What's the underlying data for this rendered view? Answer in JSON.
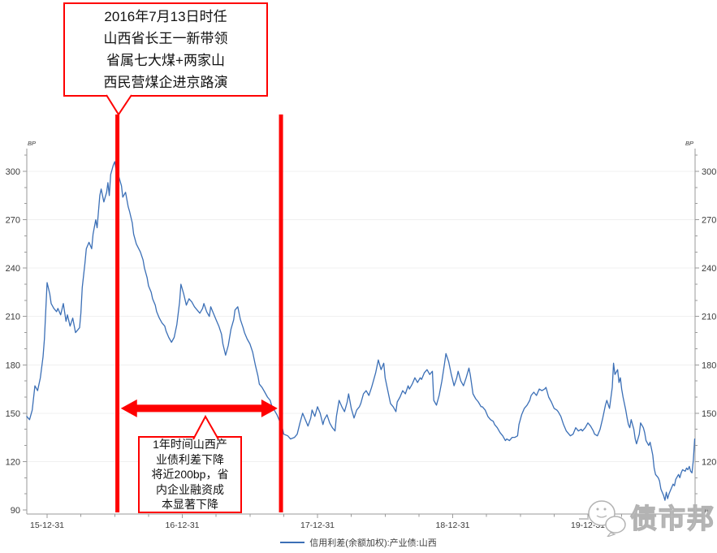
{
  "annotations": {
    "callout_top": {
      "lines": [
        "2016年7月13日时任",
        "山西省长王一新带领",
        "省属七大煤+两家山",
        "西民营煤企进京路演"
      ]
    },
    "callout_bottom": {
      "lines": [
        "1年时间山西产",
        "业债利差下降",
        "将近200bp，省",
        "内企业融资成",
        "本显著下降"
      ]
    }
  },
  "watermark": {
    "text": "债市邦"
  },
  "colors": {
    "line": "#3b6fb6",
    "red": "#fe0000",
    "grid": "#f0f0f0",
    "axis": "#9a9a9a",
    "tick_label": "#3a3a3a",
    "legend_text": "#404040",
    "watermark": "#b3b3b3"
  },
  "chart_data": {
    "type": "line",
    "title": "",
    "y_unit": "BP",
    "y_ticks": [
      90,
      120,
      150,
      180,
      210,
      240,
      270,
      300
    ],
    "y_minor_step": 10,
    "ylim": [
      87,
      313
    ],
    "x_tick_labels": [
      "15-12-31",
      "16-12-31",
      "17-12-31",
      "18-12-31",
      "19-12-31"
    ],
    "x_unit": "years since 2015-12-31",
    "x_minor_ticks_per_year": 4,
    "xlim": [
      -0.15,
      4.79
    ],
    "grid": "horizontal-light",
    "legend_position": "bottom-center",
    "legend": [
      {
        "name": "信用利差(余额加权):产业债:山西",
        "color": "#3b6fb6"
      }
    ],
    "event_lines_x": [
      0.52,
      1.73
    ],
    "arrow": {
      "from_x": 0.545,
      "to_x": 1.705,
      "y": 153
    },
    "series": [
      {
        "name": "信用利差(余额加权):产业债:山西",
        "points": [
          [
            -0.15,
            148
          ],
          [
            -0.13,
            146
          ],
          [
            -0.11,
            152
          ],
          [
            -0.09,
            167
          ],
          [
            -0.07,
            164
          ],
          [
            -0.05,
            172
          ],
          [
            -0.03,
            185
          ],
          [
            -0.02,
            196
          ],
          [
            0,
            231
          ],
          [
            0.02,
            224
          ],
          [
            0.03,
            218
          ],
          [
            0.05,
            215
          ],
          [
            0.07,
            213
          ],
          [
            0.08,
            215
          ],
          [
            0.1,
            211
          ],
          [
            0.12,
            218
          ],
          [
            0.14,
            207
          ],
          [
            0.15,
            211
          ],
          [
            0.17,
            204
          ],
          [
            0.19,
            209
          ],
          [
            0.21,
            200
          ],
          [
            0.24,
            203
          ],
          [
            0.25,
            212
          ],
          [
            0.26,
            228
          ],
          [
            0.28,
            243
          ],
          [
            0.29,
            252
          ],
          [
            0.31,
            256
          ],
          [
            0.33,
            252
          ],
          [
            0.34,
            261
          ],
          [
            0.36,
            270
          ],
          [
            0.37,
            265
          ],
          [
            0.39,
            285
          ],
          [
            0.4,
            289
          ],
          [
            0.42,
            281
          ],
          [
            0.44,
            287
          ],
          [
            0.45,
            293
          ],
          [
            0.46,
            285
          ],
          [
            0.47,
            298
          ],
          [
            0.49,
            304
          ],
          [
            0.5,
            306
          ],
          [
            0.51,
            301
          ],
          [
            0.52,
            302
          ],
          [
            0.53,
            297
          ],
          [
            0.55,
            291
          ],
          [
            0.56,
            284
          ],
          [
            0.58,
            287
          ],
          [
            0.6,
            278
          ],
          [
            0.61,
            275
          ],
          [
            0.63,
            268
          ],
          [
            0.64,
            261
          ],
          [
            0.66,
            255
          ],
          [
            0.69,
            250
          ],
          [
            0.71,
            245
          ],
          [
            0.72,
            240
          ],
          [
            0.74,
            234
          ],
          [
            0.75,
            229
          ],
          [
            0.77,
            225
          ],
          [
            0.78,
            221
          ],
          [
            0.8,
            217
          ],
          [
            0.81,
            213
          ],
          [
            0.83,
            209
          ],
          [
            0.85,
            206
          ],
          [
            0.87,
            204
          ],
          [
            0.88,
            201
          ],
          [
            0.9,
            197
          ],
          [
            0.92,
            194
          ],
          [
            0.94,
            197
          ],
          [
            0.96,
            205
          ],
          [
            0.98,
            219
          ],
          [
            0.99,
            230
          ],
          [
            1.01,
            224
          ],
          [
            1.03,
            217
          ],
          [
            1.05,
            221
          ],
          [
            1.07,
            219
          ],
          [
            1.09,
            216
          ],
          [
            1.11,
            214
          ],
          [
            1.13,
            212
          ],
          [
            1.15,
            215
          ],
          [
            1.16,
            218
          ],
          [
            1.18,
            213
          ],
          [
            1.2,
            210
          ],
          [
            1.21,
            216
          ],
          [
            1.23,
            212
          ],
          [
            1.25,
            208
          ],
          [
            1.27,
            204
          ],
          [
            1.29,
            199
          ],
          [
            1.3,
            193
          ],
          [
            1.32,
            186
          ],
          [
            1.34,
            192
          ],
          [
            1.36,
            202
          ],
          [
            1.38,
            208
          ],
          [
            1.39,
            214
          ],
          [
            1.41,
            216
          ],
          [
            1.43,
            208
          ],
          [
            1.45,
            203
          ],
          [
            1.46,
            200
          ],
          [
            1.48,
            196
          ],
          [
            1.5,
            193
          ],
          [
            1.52,
            188
          ],
          [
            1.54,
            180
          ],
          [
            1.56,
            173
          ],
          [
            1.57,
            168
          ],
          [
            1.59,
            166
          ],
          [
            1.61,
            163
          ],
          [
            1.63,
            160
          ],
          [
            1.65,
            158
          ],
          [
            1.66,
            155
          ],
          [
            1.68,
            152
          ],
          [
            1.7,
            149
          ],
          [
            1.72,
            145
          ],
          [
            1.74,
            141
          ],
          [
            1.75,
            137
          ],
          [
            1.78,
            136
          ],
          [
            1.8,
            134
          ],
          [
            1.83,
            135
          ],
          [
            1.85,
            137
          ],
          [
            1.87,
            144
          ],
          [
            1.89,
            150
          ],
          [
            1.91,
            146
          ],
          [
            1.93,
            142
          ],
          [
            1.95,
            147
          ],
          [
            1.96,
            152
          ],
          [
            1.98,
            148
          ],
          [
            2,
            154
          ],
          [
            2.02,
            150
          ],
          [
            2.04,
            143
          ],
          [
            2.05,
            146
          ],
          [
            2.07,
            149
          ],
          [
            2.09,
            144
          ],
          [
            2.11,
            141
          ],
          [
            2.13,
            139
          ],
          [
            2.14,
            148
          ],
          [
            2.16,
            158
          ],
          [
            2.18,
            154
          ],
          [
            2.2,
            151
          ],
          [
            2.22,
            157
          ],
          [
            2.23,
            162
          ],
          [
            2.25,
            153
          ],
          [
            2.27,
            147
          ],
          [
            2.29,
            152
          ],
          [
            2.31,
            154
          ],
          [
            2.32,
            156
          ],
          [
            2.34,
            162
          ],
          [
            2.36,
            164
          ],
          [
            2.38,
            161
          ],
          [
            2.4,
            166
          ],
          [
            2.41,
            169
          ],
          [
            2.43,
            175
          ],
          [
            2.45,
            183
          ],
          [
            2.47,
            177
          ],
          [
            2.49,
            181
          ],
          [
            2.5,
            172
          ],
          [
            2.52,
            164
          ],
          [
            2.54,
            156
          ],
          [
            2.56,
            154
          ],
          [
            2.58,
            151
          ],
          [
            2.59,
            157
          ],
          [
            2.61,
            160
          ],
          [
            2.63,
            164
          ],
          [
            2.65,
            162
          ],
          [
            2.67,
            167
          ],
          [
            2.68,
            165
          ],
          [
            2.7,
            168
          ],
          [
            2.72,
            172
          ],
          [
            2.74,
            169
          ],
          [
            2.76,
            172
          ],
          [
            2.77,
            171
          ],
          [
            2.79,
            175
          ],
          [
            2.81,
            177
          ],
          [
            2.83,
            174
          ],
          [
            2.85,
            176
          ],
          [
            2.86,
            158
          ],
          [
            2.88,
            155
          ],
          [
            2.9,
            161
          ],
          [
            2.92,
            170
          ],
          [
            2.94,
            181
          ],
          [
            2.95,
            187
          ],
          [
            2.97,
            182
          ],
          [
            2.99,
            174
          ],
          [
            3.01,
            167
          ],
          [
            3.03,
            172
          ],
          [
            3.04,
            176
          ],
          [
            3.06,
            170
          ],
          [
            3.08,
            167
          ],
          [
            3.1,
            172
          ],
          [
            3.12,
            178
          ],
          [
            3.13,
            174
          ],
          [
            3.15,
            162
          ],
          [
            3.17,
            159
          ],
          [
            3.19,
            157
          ],
          [
            3.21,
            154
          ],
          [
            3.22,
            154
          ],
          [
            3.24,
            152
          ],
          [
            3.26,
            148
          ],
          [
            3.28,
            146
          ],
          [
            3.3,
            145
          ],
          [
            3.31,
            143
          ],
          [
            3.33,
            141
          ],
          [
            3.35,
            138
          ],
          [
            3.37,
            136
          ],
          [
            3.39,
            133
          ],
          [
            3.4,
            134
          ],
          [
            3.42,
            133
          ],
          [
            3.44,
            135
          ],
          [
            3.46,
            135
          ],
          [
            3.48,
            136
          ],
          [
            3.49,
            143
          ],
          [
            3.51,
            149
          ],
          [
            3.53,
            153
          ],
          [
            3.55,
            155
          ],
          [
            3.57,
            158
          ],
          [
            3.58,
            161
          ],
          [
            3.6,
            163
          ],
          [
            3.62,
            161
          ],
          [
            3.64,
            165
          ],
          [
            3.66,
            164
          ],
          [
            3.68,
            165
          ],
          [
            3.69,
            166
          ],
          [
            3.71,
            160
          ],
          [
            3.73,
            157
          ],
          [
            3.75,
            153
          ],
          [
            3.77,
            152
          ],
          [
            3.78,
            151
          ],
          [
            3.8,
            148
          ],
          [
            3.82,
            143
          ],
          [
            3.84,
            139
          ],
          [
            3.86,
            137
          ],
          [
            3.87,
            136
          ],
          [
            3.89,
            137
          ],
          [
            3.91,
            141
          ],
          [
            3.93,
            139
          ],
          [
            3.95,
            140
          ],
          [
            3.96,
            139
          ],
          [
            3.98,
            141
          ],
          [
            4,
            144
          ],
          [
            4.02,
            142
          ],
          [
            4.04,
            139
          ],
          [
            4.05,
            137
          ],
          [
            4.07,
            136
          ],
          [
            4.09,
            140
          ],
          [
            4.11,
            147
          ],
          [
            4.13,
            155
          ],
          [
            4.14,
            158
          ],
          [
            4.16,
            153
          ],
          [
            4.18,
            166
          ],
          [
            4.19,
            181
          ],
          [
            4.2,
            174
          ],
          [
            4.22,
            177
          ],
          [
            4.23,
            169
          ],
          [
            4.24,
            172
          ],
          [
            4.25,
            165
          ],
          [
            4.26,
            160
          ],
          [
            4.28,
            152
          ],
          [
            4.29,
            147
          ],
          [
            4.3,
            143
          ],
          [
            4.31,
            141
          ],
          [
            4.32,
            146
          ],
          [
            4.34,
            140
          ],
          [
            4.35,
            134
          ],
          [
            4.36,
            131
          ],
          [
            4.38,
            137
          ],
          [
            4.39,
            144
          ],
          [
            4.41,
            141
          ],
          [
            4.42,
            138
          ],
          [
            4.43,
            133
          ],
          [
            4.45,
            130
          ],
          [
            4.46,
            132
          ],
          [
            4.47,
            128
          ],
          [
            4.48,
            124
          ],
          [
            4.49,
            116
          ],
          [
            4.5,
            112
          ],
          [
            4.52,
            110
          ],
          [
            4.53,
            108
          ],
          [
            4.54,
            103
          ],
          [
            4.56,
            99
          ],
          [
            4.57,
            96
          ],
          [
            4.58,
            101
          ],
          [
            4.59,
            97
          ],
          [
            4.6,
            100
          ],
          [
            4.62,
            104
          ],
          [
            4.63,
            106
          ],
          [
            4.64,
            105
          ],
          [
            4.65,
            109
          ],
          [
            4.67,
            112
          ],
          [
            4.68,
            110
          ],
          [
            4.69,
            113
          ],
          [
            4.7,
            115
          ],
          [
            4.72,
            114
          ],
          [
            4.73,
            116
          ],
          [
            4.74,
            115
          ],
          [
            4.75,
            117
          ],
          [
            4.76,
            114
          ],
          [
            4.77,
            113
          ],
          [
            4.78,
            121
          ],
          [
            4.79,
            134
          ]
        ]
      }
    ]
  }
}
